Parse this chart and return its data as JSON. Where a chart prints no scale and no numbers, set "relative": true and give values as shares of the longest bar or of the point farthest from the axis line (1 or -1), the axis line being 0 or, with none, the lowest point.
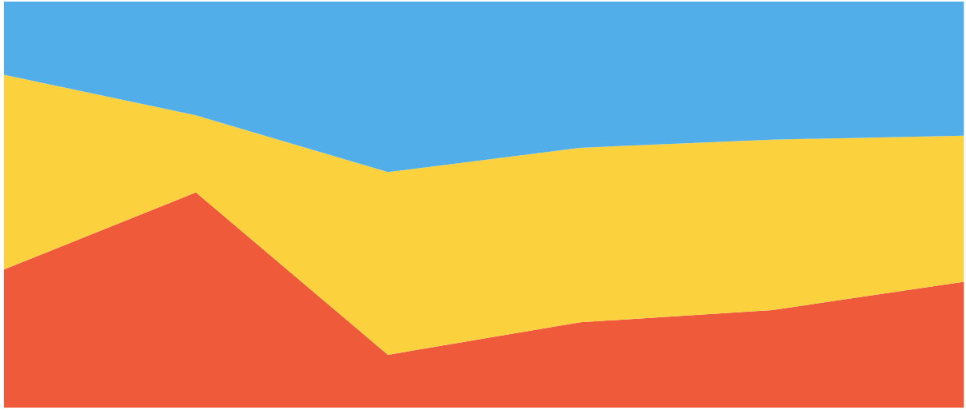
{
  "chart_data": {
    "type": "area",
    "stacked": true,
    "relative": true,
    "categories": [
      null,
      null,
      null,
      null,
      null,
      null
    ],
    "series": [
      {
        "color": "#ef5a3a",
        "values": [
          0.34,
          0.53,
          0.13,
          0.21,
          0.24,
          0.31
        ]
      },
      {
        "color": "#fbd13d",
        "values": [
          0.48,
          0.19,
          0.45,
          0.43,
          0.42,
          0.36
        ]
      },
      {
        "color": "#52aee8",
        "values": [
          0.18,
          0.28,
          0.42,
          0.36,
          0.34,
          0.33
        ]
      }
    ]
  }
}
